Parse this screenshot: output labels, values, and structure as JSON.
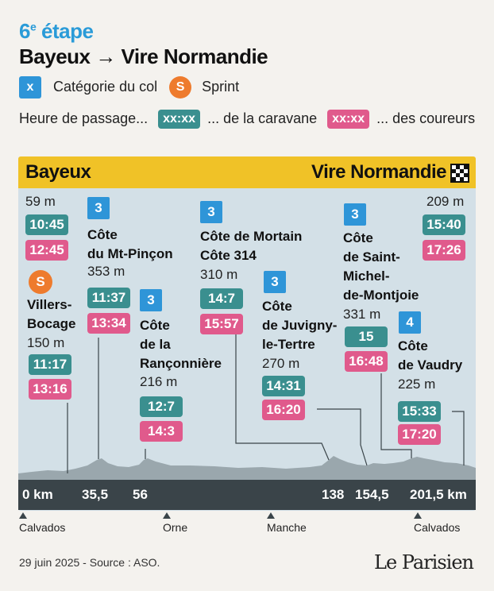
{
  "header": {
    "stage": "6",
    "stage_suffix": "e",
    "stage_word": "étape",
    "route": "Bayeux  → Vire Normandie"
  },
  "legend": {
    "cat_symbol": "x",
    "cat_label": "Catégorie du col",
    "sprint_symbol": "S",
    "sprint_label": "Sprint",
    "time_label": "Heure de passage...",
    "time_placeholder": "xx:xx",
    "caravan_label": "... de la caravane",
    "riders_label": "... des coureurs"
  },
  "profile": {
    "start": "Bayeux",
    "finish": "Vire Normandie",
    "start_alt": "59 m",
    "start_caravan": "10:45",
    "start_riders": "12:45",
    "finish_alt": "209 m",
    "finish_caravan": "15:40",
    "finish_riders": "17:26",
    "points": [
      {
        "kind": "sprint",
        "symbol": "S",
        "name1": "Villers-",
        "name2": "Bocage",
        "alt": "150 m",
        "caravan": "11:17",
        "riders": "13:16"
      },
      {
        "kind": "climb",
        "cat": "3",
        "name1": "Côte",
        "name2": "du Mt-Pinçon",
        "alt": "353 m",
        "caravan": "11:37",
        "riders": "13:34"
      },
      {
        "kind": "climb",
        "cat": "3",
        "name1": "Côte",
        "name2": "de la",
        "name3": "Rançonnière",
        "alt": "216 m",
        "caravan": "12:7",
        "riders": "14:3"
      },
      {
        "kind": "climb",
        "cat": "3",
        "name1": "Côte de Mortain",
        "name2": "Côte 314",
        "alt": "310 m",
        "caravan": "14:7",
        "riders": "15:57"
      },
      {
        "kind": "climb",
        "cat": "3",
        "name1": "Côte",
        "name2": "de Juvigny-",
        "name3": "le-Tertre",
        "alt": "270 m",
        "caravan": "14:31",
        "riders": "16:20"
      },
      {
        "kind": "climb",
        "cat": "3",
        "name1": "Côte",
        "name2": "de Saint-",
        "name3": "Michel-",
        "name4": "de-Montjoie",
        "alt": "331 m",
        "caravan": "15",
        "riders": "16:48"
      },
      {
        "kind": "climb",
        "cat": "4",
        "name1": "Côte",
        "name2": "de Vaudry",
        "alt": "225 m",
        "caravan": "15:33",
        "riders": "17:20"
      }
    ],
    "km_labels": [
      "0 km",
      "35,5",
      "56",
      "138",
      "154,5",
      "201,5 km"
    ],
    "departments": [
      "Calvados",
      "Orne",
      "Manche",
      "Calvados"
    ]
  },
  "footer": {
    "date_source": "29 juin 2025 - Source : ASO.",
    "logo": "Le Parisien"
  },
  "colors": {
    "header_yellow": "#f0c227",
    "profile_bg": "#d3e0e7",
    "category_blue": "#2e95d8",
    "sprint_orange": "#ee7b2d",
    "caravan_teal": "#3a8f8f",
    "riders_pink": "#e05a8c",
    "km_bar": "#3a4449",
    "stage_blue": "#2a9bd8"
  }
}
